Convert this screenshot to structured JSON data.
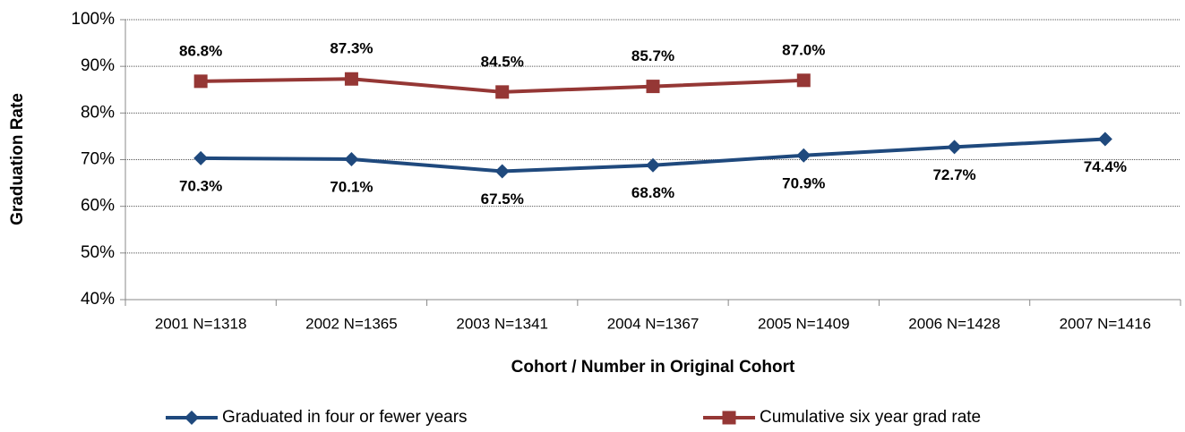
{
  "chart_data": {
    "type": "line",
    "x_label": "Cohort / Number in Original Cohort",
    "y_label": "Graduation Rate",
    "categories": [
      "2001 N=1318",
      "2002 N=1365",
      "2003 N=1341",
      "2004 N=1367",
      "2005 N=1409",
      "2006 N=1428",
      "2007 N=1416"
    ],
    "series": [
      {
        "name": "Graduated in four or fewer years",
        "color": "#1f497d",
        "marker": "diamond",
        "values": [
          70.3,
          70.1,
          67.5,
          68.8,
          70.9,
          72.7,
          74.4
        ],
        "value_labels": [
          "70.3%",
          "70.1%",
          "67.5%",
          "68.8%",
          "70.9%",
          "72.7%",
          "74.4%"
        ]
      },
      {
        "name": "Cumulative six year grad rate",
        "color": "#953735",
        "marker": "square",
        "values": [
          86.8,
          87.3,
          84.5,
          85.7,
          87.0,
          null,
          null
        ],
        "value_labels": [
          "86.8%",
          "87.3%",
          "84.5%",
          "85.7%",
          "87.0%",
          null,
          null
        ]
      }
    ],
    "ylim": [
      40,
      100
    ],
    "yticks": [
      {
        "value": 40,
        "label": "40%"
      },
      {
        "value": 50,
        "label": "50%"
      },
      {
        "value": 60,
        "label": "60%"
      },
      {
        "value": 70,
        "label": "70%"
      },
      {
        "value": 80,
        "label": "80%"
      },
      {
        "value": 90,
        "label": "90%"
      },
      {
        "value": 100,
        "label": "100%"
      }
    ],
    "grid": true
  }
}
